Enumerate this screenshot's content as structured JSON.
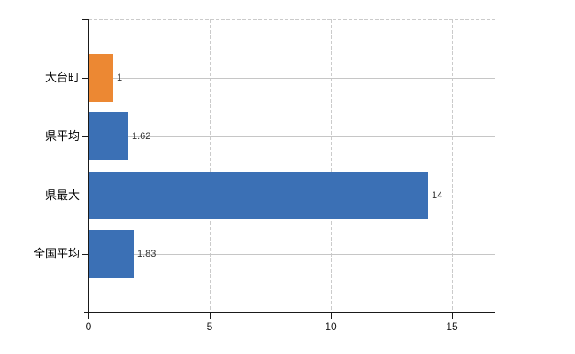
{
  "chart_data": {
    "type": "bar",
    "orientation": "horizontal",
    "title": "",
    "xlabel": "",
    "ylabel": "",
    "categories": [
      "大台町",
      "県平均",
      "県最大",
      "全国平均"
    ],
    "values": [
      1,
      1.62,
      14,
      1.83
    ],
    "value_labels": [
      "1",
      "1.62",
      "14",
      "1.83"
    ],
    "series_colors": [
      "#EC8833",
      "#3B70B5",
      "#3B70B5",
      "#3B70B5"
    ],
    "highlight_index": 0,
    "x_tick_labels": [
      "0",
      "5",
      "10",
      "15"
    ],
    "x_tick_values": [
      0,
      5,
      10,
      15
    ],
    "xlim": [
      0,
      16.8
    ],
    "legend": null,
    "grid": {
      "vertical": "dashed at x ticks",
      "horizontal": "solid at category centers",
      "top_border": "dashed"
    }
  },
  "colors": {
    "background": "#ffffff",
    "axis": "#1a1a1a",
    "gridline_dashed": "#cbcbcb",
    "gridline_solid": "#c6c6c6",
    "category_label": "#000000",
    "value_label": "#333333",
    "bar_highlight": "#EC8833",
    "bar_default": "#3B70B5"
  }
}
